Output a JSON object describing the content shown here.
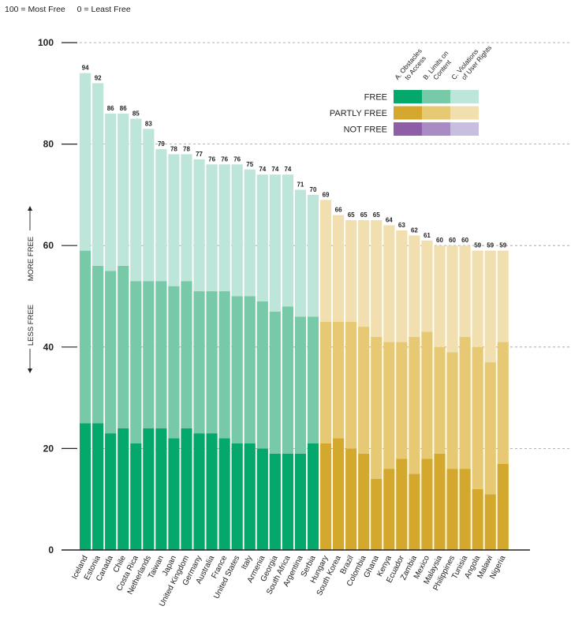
{
  "scale_note": {
    "most": "100 = Most Free",
    "least": "0 = Least Free"
  },
  "side_labels": {
    "more": "MORE FREE",
    "less": "LESS FREE"
  },
  "legend": {
    "columns": [
      "A. Obstacles to Access",
      "B. Limits on Content",
      "C. Violations of User Rights"
    ],
    "rows": [
      {
        "label": "FREE",
        "colors": [
          "#04a86a",
          "#77c9a7",
          "#bee5d9"
        ]
      },
      {
        "label": "PARTLY FREE",
        "colors": [
          "#d4a82c",
          "#e7c873",
          "#f2dfb0"
        ]
      },
      {
        "label": "NOT FREE",
        "colors": [
          "#8e5ea6",
          "#a98cc4",
          "#c8bfe0"
        ]
      }
    ]
  },
  "chart_data": {
    "type": "bar",
    "stacked": true,
    "ylim": [
      0,
      100
    ],
    "yticks": [
      0,
      20,
      40,
      60,
      80,
      100
    ],
    "grid": true,
    "legend_position": "top-right",
    "categories": [
      "Iceland",
      "Estonia",
      "Canada",
      "Chile",
      "Costa Rica",
      "Netherlands",
      "Taiwan",
      "Japan",
      "United Kingdom",
      "Germany",
      "Australia",
      "France",
      "United States",
      "Italy",
      "Armenia",
      "Georgia",
      "South Africa",
      "Argentina",
      "Serbia",
      "Hungary",
      "South Korea",
      "Brazil",
      "Colombia",
      "Ghana",
      "Kenya",
      "Ecuador",
      "Zambia",
      "Mexico",
      "Malaysia",
      "Philippines",
      "Tunisia",
      "Angola",
      "Malawi",
      "Nigeria"
    ],
    "status": [
      "FREE",
      "FREE",
      "FREE",
      "FREE",
      "FREE",
      "FREE",
      "FREE",
      "FREE",
      "FREE",
      "FREE",
      "FREE",
      "FREE",
      "FREE",
      "FREE",
      "FREE",
      "FREE",
      "FREE",
      "FREE",
      "FREE",
      "PARTLY FREE",
      "PARTLY FREE",
      "PARTLY FREE",
      "PARTLY FREE",
      "PARTLY FREE",
      "PARTLY FREE",
      "PARTLY FREE",
      "PARTLY FREE",
      "PARTLY FREE",
      "PARTLY FREE",
      "PARTLY FREE",
      "PARTLY FREE",
      "PARTLY FREE",
      "PARTLY FREE",
      "PARTLY FREE"
    ],
    "series": [
      {
        "name": "A. Obstacles to Access",
        "values": [
          25,
          25,
          23,
          24,
          21,
          24,
          24,
          22,
          24,
          23,
          23,
          22,
          21,
          21,
          20,
          19,
          19,
          19,
          21,
          21,
          22,
          20,
          19,
          14,
          16,
          18,
          15,
          18,
          19,
          16,
          16,
          12,
          11,
          17
        ]
      },
      {
        "name": "B. Limits on Content",
        "values": [
          34,
          31,
          32,
          32,
          32,
          29,
          29,
          30,
          29,
          28,
          28,
          29,
          29,
          29,
          29,
          28,
          29,
          27,
          25,
          24,
          23,
          25,
          25,
          28,
          25,
          23,
          27,
          25,
          21,
          23,
          26,
          28,
          26,
          24
        ]
      },
      {
        "name": "C. Violations of User Rights",
        "values": [
          35,
          36,
          31,
          30,
          32,
          30,
          26,
          26,
          25,
          26,
          25,
          25,
          26,
          25,
          25,
          27,
          26,
          25,
          24,
          24,
          21,
          20,
          21,
          23,
          23,
          22,
          20,
          18,
          20,
          21,
          18,
          19,
          22,
          18
        ]
      }
    ],
    "totals": [
      94,
      92,
      86,
      86,
      85,
      83,
      79,
      78,
      78,
      77,
      76,
      76,
      76,
      75,
      74,
      74,
      74,
      71,
      70,
      69,
      66,
      65,
      65,
      65,
      64,
      63,
      62,
      61,
      60,
      60,
      60,
      59,
      59,
      59
    ]
  }
}
